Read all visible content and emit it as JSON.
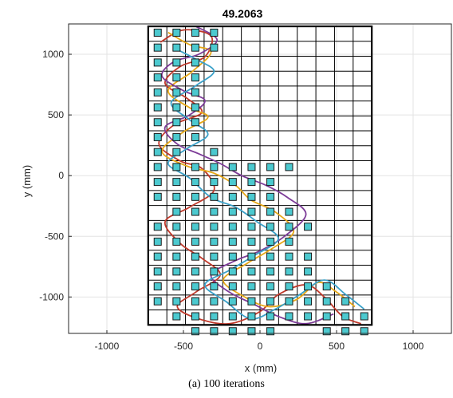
{
  "chart_data": {
    "type": "scatter",
    "title": "49.2063",
    "xlabel": "x (mm)",
    "ylabel": "y (mm)",
    "xlim": [
      -1250,
      1250
    ],
    "ylim": [
      -1300,
      1250
    ],
    "xticks": [
      -1000,
      -500,
      0,
      500,
      1000
    ],
    "xtick_labels": [
      "-1000",
      "-500",
      "0",
      "500",
      "1000"
    ],
    "yticks": [
      -1000,
      -500,
      0,
      500,
      1000
    ],
    "ytick_labels": [
      "-1000",
      "-500",
      "0",
      "500",
      "1000"
    ],
    "grid": true,
    "grid_region": {
      "x": [
        -730,
        730
      ],
      "y": [
        -1230,
        1230
      ],
      "cols": 12,
      "rows": 20
    },
    "series": [
      {
        "marker": "square",
        "color": "#4cc9cf",
        "points": [
          [
            -668,
            1178
          ],
          [
            -545,
            1178
          ],
          [
            -422,
            1178
          ],
          [
            -300,
            1178
          ],
          [
            -668,
            1055
          ],
          [
            -545,
            1055
          ],
          [
            -422,
            1055
          ],
          [
            -300,
            1055
          ],
          [
            -668,
            932
          ],
          [
            -545,
            932
          ],
          [
            -422,
            932
          ],
          [
            -668,
            809
          ],
          [
            -545,
            809
          ],
          [
            -422,
            809
          ],
          [
            -668,
            686
          ],
          [
            -545,
            686
          ],
          [
            -422,
            686
          ],
          [
            -668,
            563
          ],
          [
            -545,
            563
          ],
          [
            -422,
            563
          ],
          [
            -668,
            440
          ],
          [
            -545,
            440
          ],
          [
            -422,
            440
          ],
          [
            -668,
            317
          ],
          [
            -545,
            317
          ],
          [
            -422,
            317
          ],
          [
            -668,
            194
          ],
          [
            -545,
            194
          ],
          [
            -300,
            194
          ],
          [
            -668,
            71
          ],
          [
            -545,
            71
          ],
          [
            -422,
            71
          ],
          [
            -300,
            71
          ],
          [
            -178,
            71
          ],
          [
            -55,
            71
          ],
          [
            68,
            71
          ],
          [
            190,
            71
          ],
          [
            -668,
            -52
          ],
          [
            -545,
            -52
          ],
          [
            -422,
            -52
          ],
          [
            -300,
            -52
          ],
          [
            -178,
            -52
          ],
          [
            -55,
            -52
          ],
          [
            68,
            -52
          ],
          [
            -668,
            -175
          ],
          [
            -545,
            -175
          ],
          [
            -422,
            -175
          ],
          [
            -300,
            -175
          ],
          [
            -178,
            -175
          ],
          [
            -55,
            -175
          ],
          [
            68,
            -175
          ],
          [
            -545,
            -298
          ],
          [
            -422,
            -298
          ],
          [
            -300,
            -298
          ],
          [
            -178,
            -298
          ],
          [
            -55,
            -298
          ],
          [
            68,
            -298
          ],
          [
            190,
            -298
          ],
          [
            -668,
            -421
          ],
          [
            -545,
            -421
          ],
          [
            -422,
            -421
          ],
          [
            -300,
            -421
          ],
          [
            -178,
            -421
          ],
          [
            -55,
            -421
          ],
          [
            68,
            -421
          ],
          [
            190,
            -421
          ],
          [
            313,
            -421
          ],
          [
            -668,
            -544
          ],
          [
            -545,
            -544
          ],
          [
            -422,
            -544
          ],
          [
            -300,
            -544
          ],
          [
            -178,
            -544
          ],
          [
            -55,
            -544
          ],
          [
            68,
            -544
          ],
          [
            190,
            -544
          ],
          [
            -668,
            -667
          ],
          [
            -545,
            -667
          ],
          [
            -422,
            -667
          ],
          [
            -300,
            -667
          ],
          [
            -178,
            -667
          ],
          [
            -55,
            -667
          ],
          [
            68,
            -667
          ],
          [
            190,
            -667
          ],
          [
            313,
            -667
          ],
          [
            -668,
            -790
          ],
          [
            -545,
            -790
          ],
          [
            -422,
            -790
          ],
          [
            -300,
            -790
          ],
          [
            -178,
            -790
          ],
          [
            -55,
            -790
          ],
          [
            68,
            -790
          ],
          [
            190,
            -790
          ],
          [
            313,
            -790
          ],
          [
            -668,
            -913
          ],
          [
            -545,
            -913
          ],
          [
            -422,
            -913
          ],
          [
            -300,
            -913
          ],
          [
            -178,
            -913
          ],
          [
            -55,
            -913
          ],
          [
            68,
            -913
          ],
          [
            190,
            -913
          ],
          [
            313,
            -913
          ],
          [
            436,
            -913
          ],
          [
            -668,
            -1036
          ],
          [
            -545,
            -1036
          ],
          [
            -422,
            -1036
          ],
          [
            -300,
            -1036
          ],
          [
            -178,
            -1036
          ],
          [
            -55,
            -1036
          ],
          [
            68,
            -1036
          ],
          [
            190,
            -1036
          ],
          [
            313,
            -1036
          ],
          [
            436,
            -1036
          ],
          [
            558,
            -1036
          ],
          [
            -545,
            -1159
          ],
          [
            -422,
            -1159
          ],
          [
            -300,
            -1159
          ],
          [
            -178,
            -1159
          ],
          [
            -55,
            -1159
          ],
          [
            68,
            -1159
          ],
          [
            190,
            -1159
          ],
          [
            313,
            -1159
          ],
          [
            436,
            -1159
          ],
          [
            558,
            -1159
          ],
          [
            681,
            -1159
          ],
          [
            -422,
            -1282
          ],
          [
            -300,
            -1282
          ],
          [
            -178,
            -1282
          ],
          [
            -55,
            -1282
          ],
          [
            68,
            -1282
          ],
          [
            436,
            -1282
          ],
          [
            558,
            -1282
          ],
          [
            681,
            -1282
          ]
        ]
      }
    ],
    "paths": [
      {
        "color": "#c0392b",
        "points": [
          [
            -650,
            1100
          ],
          [
            -500,
            1200
          ],
          [
            -320,
            1150
          ],
          [
            -360,
            980
          ],
          [
            -520,
            900
          ],
          [
            -620,
            760
          ],
          [
            -480,
            640
          ],
          [
            -380,
            520
          ],
          [
            -560,
            420
          ],
          [
            -660,
            260
          ],
          [
            -520,
            120
          ],
          [
            -380,
            60
          ],
          [
            -300,
            -120
          ],
          [
            -460,
            -260
          ],
          [
            -620,
            -380
          ],
          [
            -520,
            -560
          ],
          [
            -380,
            -680
          ],
          [
            -260,
            -820
          ],
          [
            -420,
            -960
          ],
          [
            -540,
            -1080
          ],
          [
            -400,
            -1180
          ],
          [
            -200,
            -1220
          ],
          [
            0,
            -1120
          ],
          [
            120,
            -980
          ],
          [
            300,
            -900
          ],
          [
            420,
            -1000
          ],
          [
            540,
            -1160
          ],
          [
            660,
            -1220
          ]
        ]
      },
      {
        "color": "#e6a817",
        "points": [
          [
            -600,
            1180
          ],
          [
            -460,
            1080
          ],
          [
            -320,
            1020
          ],
          [
            -440,
            860
          ],
          [
            -600,
            700
          ],
          [
            -460,
            560
          ],
          [
            -340,
            480
          ],
          [
            -500,
            360
          ],
          [
            -640,
            200
          ],
          [
            -480,
            80
          ],
          [
            -300,
            20
          ],
          [
            -160,
            -80
          ],
          [
            -60,
            -200
          ],
          [
            100,
            -300
          ],
          [
            220,
            -460
          ],
          [
            80,
            -600
          ],
          [
            -80,
            -720
          ],
          [
            -240,
            -860
          ],
          [
            -100,
            -1000
          ],
          [
            60,
            -1080
          ],
          [
            240,
            -1020
          ],
          [
            380,
            -880
          ],
          [
            500,
            -960
          ],
          [
            620,
            -1080
          ]
        ]
      },
      {
        "color": "#7d3c98",
        "points": [
          [
            -420,
            1230
          ],
          [
            -280,
            1120
          ],
          [
            -400,
            1000
          ],
          [
            -560,
            940
          ],
          [
            -640,
            820
          ],
          [
            -500,
            700
          ],
          [
            -360,
            620
          ],
          [
            -460,
            500
          ],
          [
            -620,
            400
          ],
          [
            -540,
            260
          ],
          [
            -400,
            180
          ],
          [
            -260,
            100
          ],
          [
            -120,
            0
          ],
          [
            40,
            -80
          ],
          [
            180,
            -180
          ],
          [
            300,
            -320
          ],
          [
            160,
            -500
          ],
          [
            0,
            -620
          ],
          [
            -160,
            -700
          ],
          [
            -320,
            -820
          ],
          [
            -200,
            -960
          ],
          [
            -40,
            -1060
          ],
          [
            120,
            -1160
          ],
          [
            300,
            -1220
          ],
          [
            480,
            -1140
          ]
        ]
      },
      {
        "color": "#3aa0c8",
        "points": [
          [
            -560,
            1050
          ],
          [
            -420,
            960
          ],
          [
            -300,
            860
          ],
          [
            -420,
            740
          ],
          [
            -580,
            600
          ],
          [
            -460,
            460
          ],
          [
            -340,
            340
          ],
          [
            -480,
            220
          ],
          [
            -600,
            100
          ],
          [
            -460,
            -20
          ],
          [
            -320,
            -180
          ],
          [
            -160,
            -260
          ],
          [
            -20,
            -380
          ],
          [
            120,
            -520
          ],
          [
            -40,
            -660
          ],
          [
            -200,
            -780
          ],
          [
            -360,
            -900
          ],
          [
            -220,
            -1040
          ],
          [
            -60,
            -1180
          ],
          [
            100,
            -1100
          ],
          [
            260,
            -980
          ],
          [
            420,
            -860
          ],
          [
            560,
            -980
          ],
          [
            680,
            -1100
          ]
        ]
      }
    ]
  },
  "caption": "(a) 100 iterations"
}
